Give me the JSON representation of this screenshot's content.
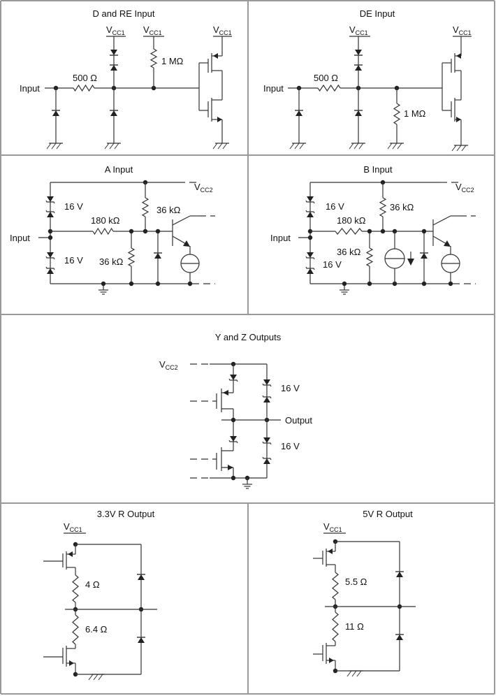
{
  "panels": {
    "d_re": {
      "title": "D and RE Input",
      "vcc": {
        "main": "V",
        "sub": "CC1"
      },
      "input": "Input",
      "r_series": "500 Ω",
      "r_pullup": "1 MΩ"
    },
    "de": {
      "title": "DE Input",
      "vcc": {
        "main": "V",
        "sub": "CC1"
      },
      "input": "Input",
      "r_series": "500 Ω",
      "r_pulldown": "1 MΩ"
    },
    "a": {
      "title": "A Input",
      "vcc": {
        "main": "V",
        "sub": "CC2"
      },
      "input": "Input",
      "zener_top": "16 V",
      "zener_bottom": "16 V",
      "r_series": "180 kΩ",
      "r_top": "36 kΩ",
      "r_bottom": "36 kΩ"
    },
    "b": {
      "title": "B Input",
      "vcc": {
        "main": "V",
        "sub": "CC2"
      },
      "input": "Input",
      "zener_top": "16 V",
      "zener_bottom": "16 V",
      "r_series": "180 kΩ",
      "r_top": "36 kΩ",
      "r_bottom": "36 kΩ"
    },
    "yz": {
      "title": "Y and Z Outputs",
      "vcc": {
        "main": "V",
        "sub": "CC2"
      },
      "output": "Output",
      "zener_top": "16 V",
      "zener_bottom": "16 V"
    },
    "r33": {
      "title": "3.3V R Output",
      "vcc": {
        "main": "V",
        "sub": "CC1"
      },
      "r_top": "4 Ω",
      "r_bottom": "6.4 Ω"
    },
    "r5": {
      "title": "5V R Output",
      "vcc": {
        "main": "V",
        "sub": "CC1"
      },
      "r_top": "5.5 Ω",
      "r_bottom": "11 Ω"
    }
  },
  "colors": {
    "wire": "#333333",
    "border": "#999999",
    "background": "#ffffff"
  }
}
